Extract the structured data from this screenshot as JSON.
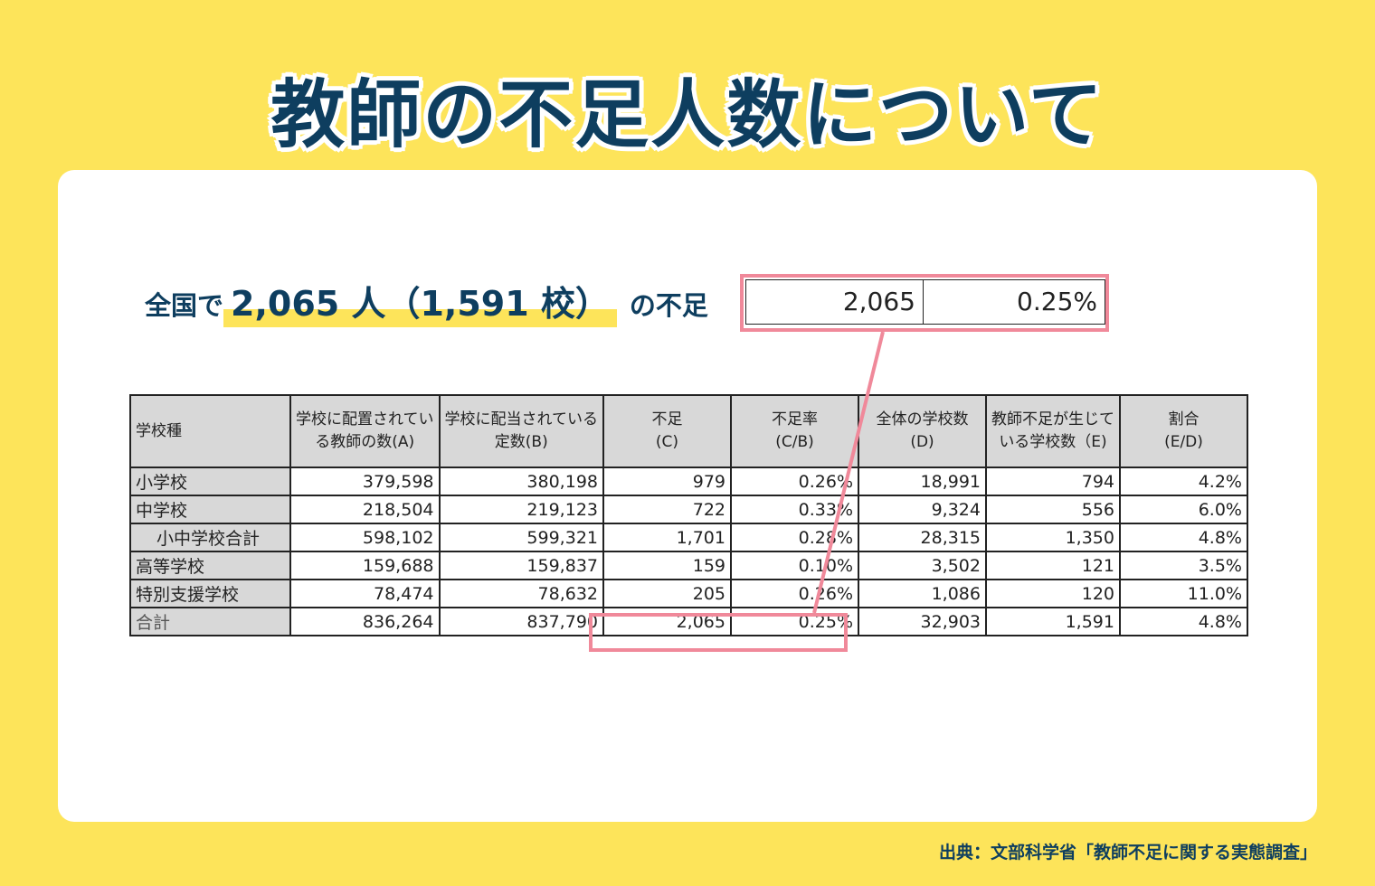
{
  "title": "教師の不足人数について",
  "headline": {
    "prefix": "全国で",
    "highlight": "2,065 人（1,591 校）",
    "suffix": "の不足"
  },
  "summary": {
    "shortage": "2,065",
    "rate": "0.25%"
  },
  "table": {
    "headers": [
      [
        "学校種"
      ],
      [
        "学校に配置されてい",
        "る教師の数(A)"
      ],
      [
        "学校に配当されている",
        "定数(B)"
      ],
      [
        "不足",
        "(C)"
      ],
      [
        "不足率",
        "(C/B)"
      ],
      [
        "全体の学校数",
        "(D)"
      ],
      [
        "教師不足が生じて",
        "いる学校数（E)"
      ],
      [
        "割合",
        "(E/D)"
      ]
    ],
    "rows": [
      [
        "小学校",
        "379,598",
        "380,198",
        "979",
        "0.26%",
        "18,991",
        "794",
        "4.2%"
      ],
      [
        "中学校",
        "218,504",
        "219,123",
        "722",
        "0.33%",
        "9,324",
        "556",
        "6.0%"
      ],
      [
        "小中学校合計",
        "598,102",
        "599,321",
        "1,701",
        "0.28%",
        "28,315",
        "1,350",
        "4.8%"
      ],
      [
        "高等学校",
        "159,688",
        "159,837",
        "159",
        "0.10%",
        "3,502",
        "121",
        "3.5%"
      ],
      [
        "特別支援学校",
        "78,474",
        "78,632",
        "205",
        "0.26%",
        "1,086",
        "120",
        "11.0%"
      ],
      [
        "合計",
        "836,264",
        "837,790",
        "2,065",
        "0.25%",
        "32,903",
        "1,591",
        "4.8%"
      ]
    ]
  },
  "source": "出典：文部科学省「教師不足に関する実態調査」",
  "colors": {
    "background": "#FDE45A",
    "title": "#0E3E5F",
    "highlight_box": "#F0899A",
    "header_fill": "#D8D8D8"
  }
}
